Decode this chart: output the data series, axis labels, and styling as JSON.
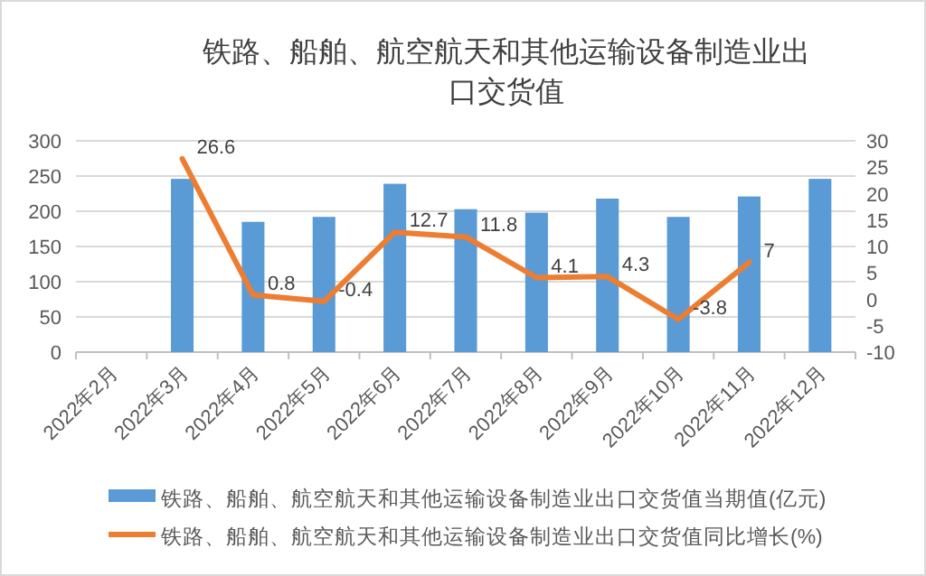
{
  "chart_data": {
    "type": "bar",
    "title": "铁路、船舶、航空航天和其他运输设备制造业出口交货值",
    "categories": [
      "2022年2月",
      "2022年3月",
      "2022年4月",
      "2022年5月",
      "2022年6月",
      "2022年7月",
      "2022年8月",
      "2022年9月",
      "2022年10月",
      "2022年11月",
      "2022年12月"
    ],
    "series": [
      {
        "name": "铁路、船舶、航空航天和其他运输设备制造业出口交货值当期值(亿元)",
        "color": "#5b9bd5",
        "values": [
          null,
          246,
          185,
          192,
          239,
          203,
          198,
          218,
          192,
          221,
          246
        ]
      },
      {
        "name": "铁路、船舶、航空航天和其他运输设备制造业出口交货值同比增长(%)",
        "type": "line",
        "axis": "y2",
        "color": "#ed7d31",
        "values": [
          null,
          26.6,
          0.8,
          -0.4,
          12.7,
          11.8,
          4.1,
          4.3,
          -3.8,
          7,
          null
        ],
        "value_labels": [
          null,
          "26.6",
          "0.8",
          "-0.4",
          "12.7",
          "11.8",
          "4.1",
          "4.3",
          "-3.8",
          "7",
          null
        ]
      }
    ],
    "ylim": [
      0,
      300
    ],
    "yticks": [
      0,
      50,
      100,
      150,
      200,
      250,
      300
    ],
    "y2lim": [
      -10,
      30
    ],
    "y2ticks": [
      -10,
      -5,
      0,
      5,
      10,
      15,
      20,
      25,
      30
    ],
    "grid": "y",
    "legend": "bottom"
  }
}
